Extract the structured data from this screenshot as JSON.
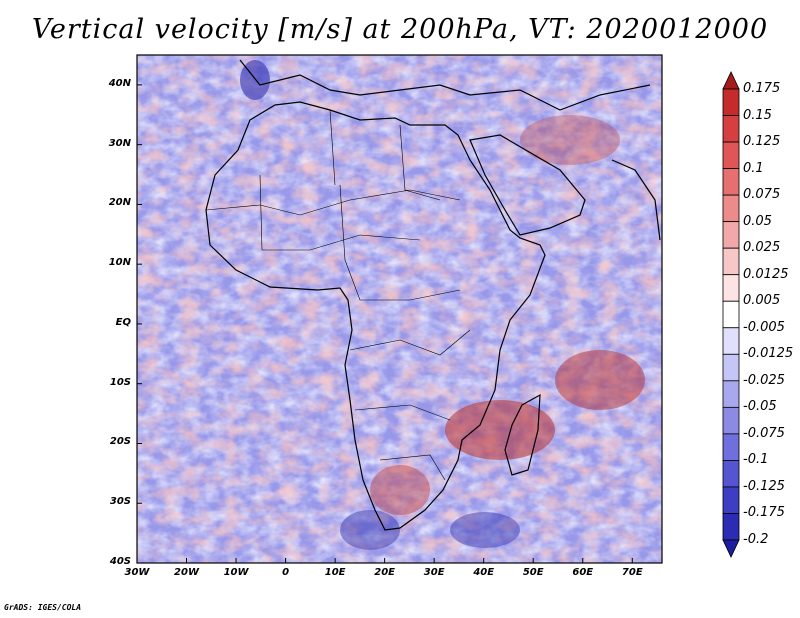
{
  "title": "Vertical velocity [m/s] at 200hPa, VT: 2020012000",
  "map": {
    "lat_labels": [
      "40N",
      "30N",
      "20N",
      "10N",
      "EQ",
      "10S",
      "20S",
      "30S",
      "40S"
    ],
    "lon_labels": [
      "30W",
      "20W",
      "10W",
      "0",
      "10E",
      "20E",
      "30E",
      "40E",
      "50E",
      "60E",
      "70E"
    ],
    "lat_range": [
      -40,
      45
    ],
    "lon_range": [
      -30,
      76
    ]
  },
  "colorbar": {
    "labels": [
      "0.175",
      "0.15",
      "0.125",
      "0.1",
      "0.075",
      "0.05",
      "0.025",
      "0.0125",
      "0.005",
      "-0.005",
      "-0.0125",
      "-0.025",
      "-0.05",
      "-0.075",
      "-0.1",
      "-0.125",
      "-0.175",
      "-0.2"
    ],
    "colors": [
      "#a51b1b",
      "#c62b2b",
      "#d63f3f",
      "#e05555",
      "#e76f6f",
      "#ed8b8b",
      "#f2a8a8",
      "#f7c6c6",
      "#fce4e4",
      "#ffffff",
      "#e0e0fc",
      "#c6c6f6",
      "#a8a8ee",
      "#8b8be6",
      "#6f6fdd",
      "#5555d2",
      "#3e3ec4",
      "#2b2bb3",
      "#1c1ca0"
    ]
  },
  "credit": "GrADS: IGES/COLA"
}
